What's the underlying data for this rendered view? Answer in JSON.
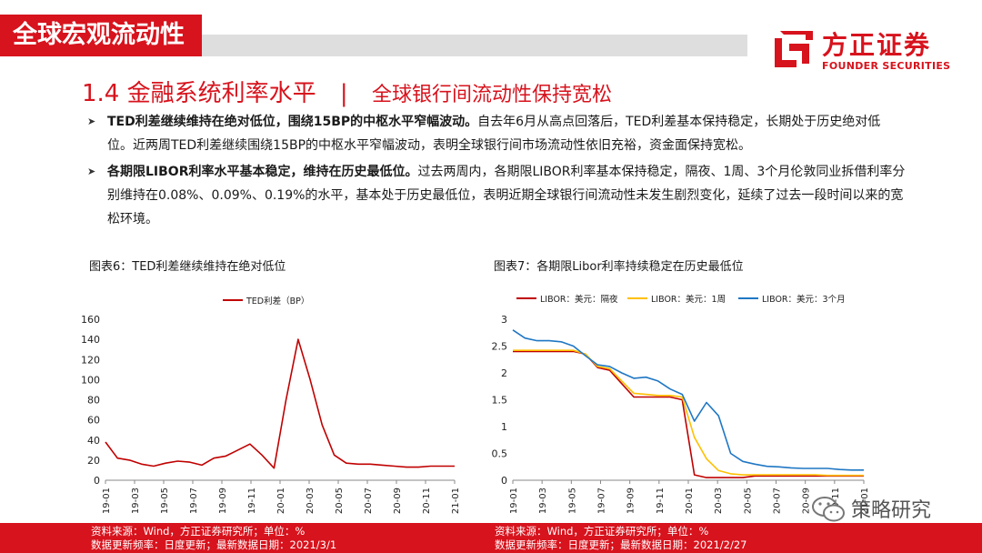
{
  "header": {
    "section": "全球宏观流动性",
    "logo_cn": "方正证券",
    "logo_en": "FOUNDER SECURITIES"
  },
  "title": {
    "number": "1.4",
    "main": "金融系统利率水平",
    "separator": "|",
    "sub": "全球银行间流动性保持宽松"
  },
  "bullets": [
    {
      "bold": "TED利差继续维持在绝对低位，围绕15BP的中枢水平窄幅波动。",
      "text": "自去年6月从高点回落后，TED利差基本保持稳定，长期处于历史绝对低位。近两周TED利差继续围绕15BP的中枢水平窄幅波动，表明全球银行间市场流动性依旧充裕，资金面保持宽松。"
    },
    {
      "bold": "各期限LIBOR利率水平基本稳定，维持在历史最低位。",
      "text": "过去两周内，各期限LIBOR利率基本保持稳定，隔夜、1周、3个月伦敦同业拆借利率分别维持在0.08%、0.09%、0.19%的水平，基本处于历史最低位，表明近期全球银行间流动性未发生剧烈变化，延续了过去一段时间以来的宽松环境。"
    }
  ],
  "figures": [
    {
      "caption": "图表6：TED利差继续维持在绝对低位",
      "source": "资料来源：Wind，方正证券研究所；单位：%",
      "update": "数据更新频率：日度更新；最新数据日期：2021/3/1"
    },
    {
      "caption": "图表7：各期限Libor利率持续稳定在历史最低位",
      "source": "资料来源：Wind，方正证券研究所；单位：%",
      "update": "数据更新频率：日度更新；最新数据日期：2021/2/27"
    }
  ],
  "watermark": "策略研究",
  "colors": {
    "brand_red": "#d7131d",
    "series_orange": "#ffc000",
    "series_blue": "#1f77c4"
  },
  "chart_data": [
    {
      "type": "line",
      "title": "",
      "ylim": [
        0,
        160
      ],
      "yticks": [
        0,
        20,
        40,
        60,
        80,
        100,
        120,
        140,
        160
      ],
      "xticks": [
        "19-01",
        "19-03",
        "19-05",
        "19-07",
        "19-09",
        "19-11",
        "20-01",
        "20-03",
        "20-05",
        "20-07",
        "20-09",
        "20-11",
        "21-01"
      ],
      "legend_position": "top-center",
      "x": [
        "19-01",
        "19-02",
        "19-03",
        "19-04",
        "19-05",
        "19-06",
        "19-07",
        "19-08",
        "19-09",
        "19-10",
        "19-11",
        "19-12",
        "20-01",
        "20-02",
        "20-03",
        "20-03b",
        "20-04",
        "20-04b",
        "20-05",
        "20-05b",
        "20-06",
        "20-07",
        "20-08",
        "20-09",
        "20-10",
        "20-11",
        "20-12",
        "21-01",
        "21-02",
        "21-03"
      ],
      "series": [
        {
          "name": "TED利差（BP）",
          "color": "#c00000",
          "values": [
            38,
            22,
            20,
            16,
            14,
            17,
            19,
            18,
            15,
            22,
            24,
            30,
            36,
            25,
            12,
            80,
            140,
            100,
            55,
            25,
            17,
            16,
            16,
            15,
            14,
            13,
            13,
            14,
            14,
            14
          ]
        }
      ]
    },
    {
      "type": "line",
      "title": "",
      "ylim": [
        0,
        3
      ],
      "yticks": [
        0,
        0.5,
        1,
        1.5,
        2,
        2.5,
        3
      ],
      "xticks": [
        "19-01",
        "19-03",
        "19-05",
        "19-07",
        "19-09",
        "19-11",
        "20-01",
        "20-03",
        "20-05",
        "20-07",
        "20-09",
        "20-11",
        "21-01"
      ],
      "legend_position": "top",
      "x": [
        "19-01",
        "19-02",
        "19-03",
        "19-04",
        "19-05",
        "19-06",
        "19-07",
        "19-08",
        "19-09",
        "19-10",
        "19-11",
        "19-12",
        "20-01",
        "20-02",
        "20-03",
        "20-03b",
        "20-04",
        "20-04b",
        "20-05",
        "20-05b",
        "20-06",
        "20-07",
        "20-08",
        "20-09",
        "20-10",
        "20-11",
        "20-12",
        "21-01",
        "21-02",
        "21-03"
      ],
      "series": [
        {
          "name": "LIBOR：美元：隔夜",
          "color": "#c00000",
          "values": [
            2.4,
            2.4,
            2.4,
            2.4,
            2.4,
            2.4,
            2.35,
            2.1,
            2.05,
            1.8,
            1.55,
            1.55,
            1.55,
            1.55,
            1.5,
            0.1,
            0.05,
            0.05,
            0.05,
            0.05,
            0.08,
            0.08,
            0.08,
            0.08,
            0.08,
            0.08,
            0.08,
            0.08,
            0.08,
            0.08
          ]
        },
        {
          "name": "LIBOR：美元：1周",
          "color": "#ffc000",
          "values": [
            2.42,
            2.42,
            2.42,
            2.42,
            2.42,
            2.42,
            2.35,
            2.12,
            2.08,
            1.85,
            1.62,
            1.6,
            1.58,
            1.58,
            1.55,
            0.8,
            0.4,
            0.18,
            0.12,
            0.1,
            0.1,
            0.1,
            0.1,
            0.1,
            0.1,
            0.1,
            0.09,
            0.09,
            0.09,
            0.09
          ]
        },
        {
          "name": "LIBOR：美元：3个月",
          "color": "#1f77c4",
          "values": [
            2.8,
            2.65,
            2.6,
            2.6,
            2.58,
            2.5,
            2.32,
            2.15,
            2.12,
            2.0,
            1.9,
            1.92,
            1.85,
            1.7,
            1.6,
            1.1,
            1.45,
            1.2,
            0.5,
            0.35,
            0.3,
            0.26,
            0.25,
            0.23,
            0.22,
            0.22,
            0.22,
            0.2,
            0.19,
            0.19
          ]
        }
      ]
    }
  ]
}
